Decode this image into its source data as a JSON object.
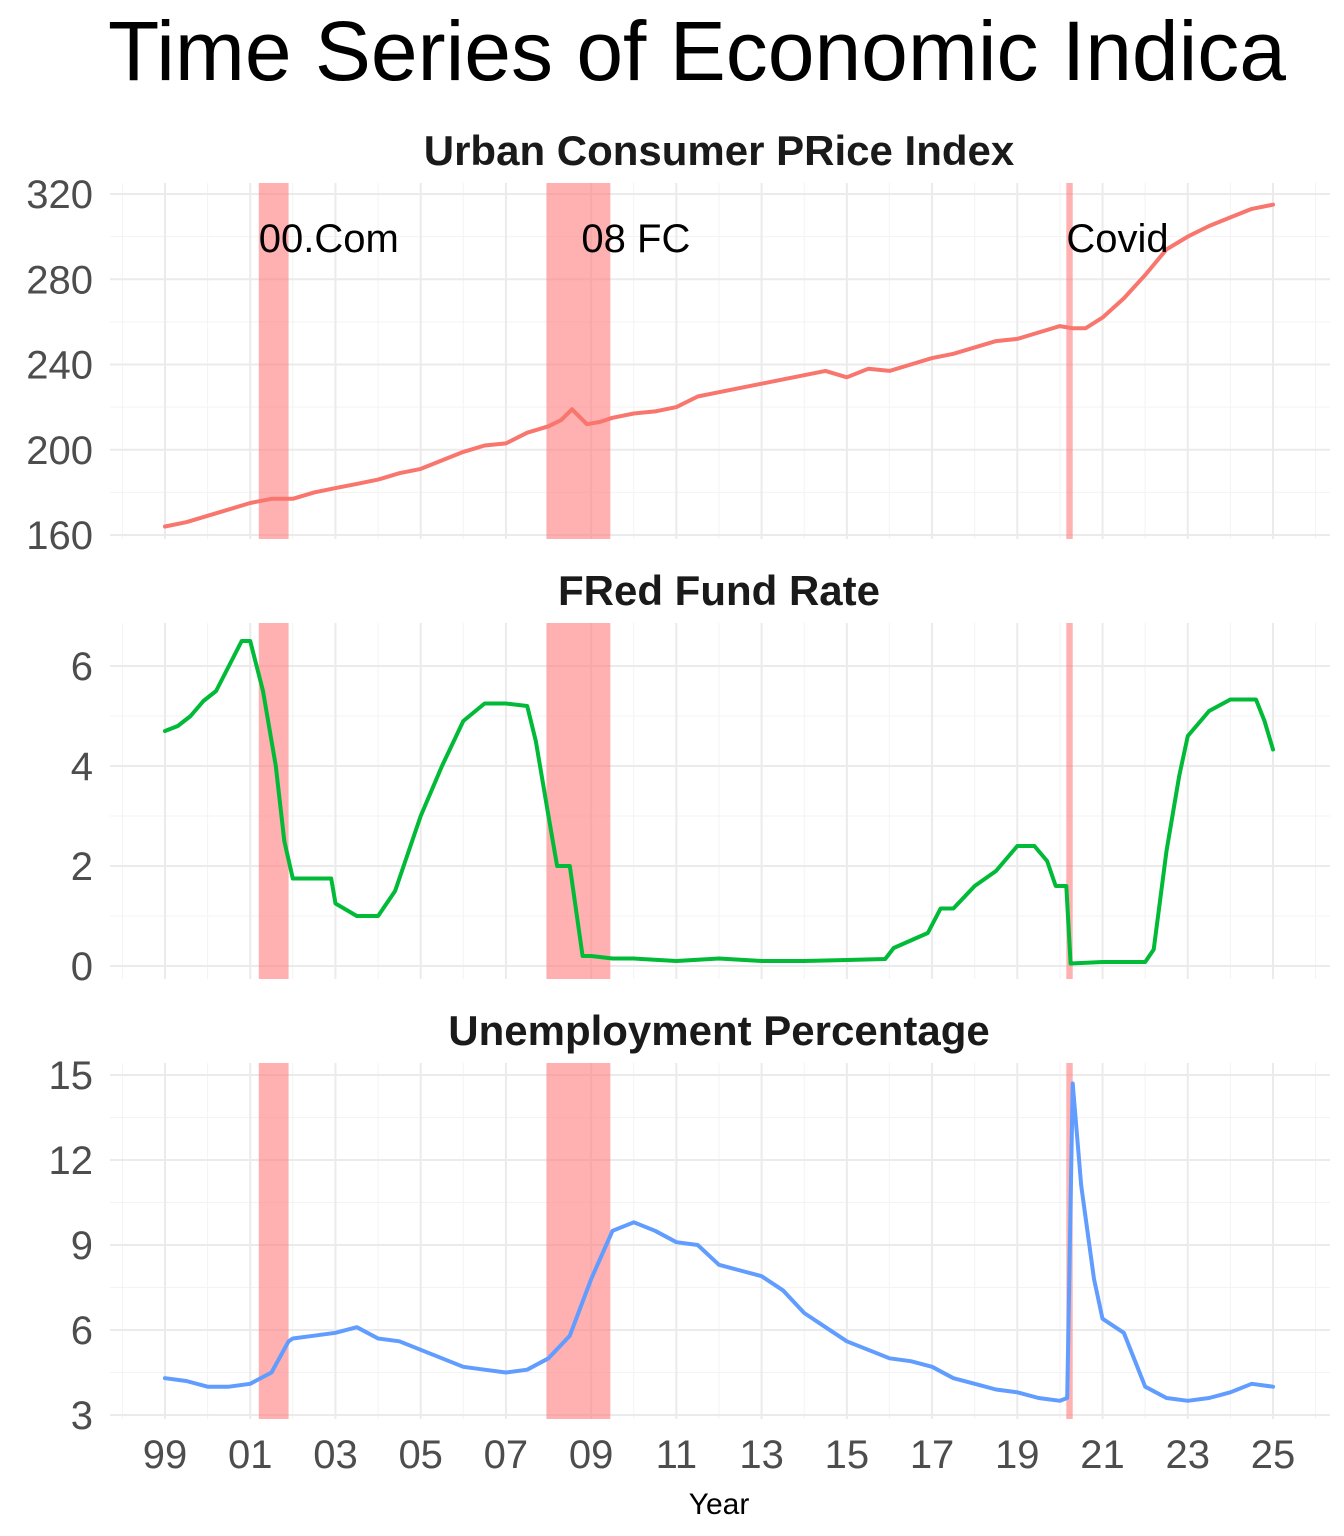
{
  "title": "Time Series of Economic Indica",
  "chart_data": [
    {
      "type": "line",
      "title": "Urban Consumer PRice Index",
      "xlabel": "",
      "ylabel": "",
      "xlim": [
        1999.0,
        2025.1
      ],
      "ylim": [
        160,
        320
      ],
      "y_ticks": [
        160,
        200,
        240,
        280,
        320
      ],
      "x_ticks": [
        1999,
        2001,
        2003,
        2005,
        2007,
        2009,
        2011,
        2013,
        2015,
        2017,
        2019,
        2021,
        2023,
        2025
      ],
      "grid": true,
      "color": "#F8766D",
      "x": [
        1999.0,
        1999.5,
        2000.0,
        2000.5,
        2001.0,
        2001.5,
        2002.0,
        2002.5,
        2003.0,
        2003.5,
        2004.0,
        2004.5,
        2005.0,
        2005.5,
        2006.0,
        2006.5,
        2007.0,
        2007.5,
        2008.0,
        2008.3,
        2008.55,
        2008.9,
        2009.2,
        2009.5,
        2010.0,
        2010.5,
        2011.0,
        2011.5,
        2012.0,
        2012.5,
        2013.0,
        2013.5,
        2014.0,
        2014.5,
        2015.0,
        2015.5,
        2016.0,
        2016.5,
        2017.0,
        2017.5,
        2018.0,
        2018.5,
        2019.0,
        2019.5,
        2020.0,
        2020.3,
        2020.6,
        2021.0,
        2021.5,
        2022.0,
        2022.5,
        2023.0,
        2023.5,
        2024.0,
        2024.5,
        2025.0
      ],
      "values": [
        164,
        166,
        169,
        172,
        175,
        177,
        177,
        180,
        182,
        184,
        186,
        189,
        191,
        195,
        199,
        202,
        203,
        208,
        211,
        214,
        219,
        212,
        213,
        215,
        217,
        218,
        220,
        225,
        227,
        229,
        231,
        233,
        235,
        237,
        234,
        238,
        237,
        240,
        243,
        245,
        248,
        251,
        252,
        255,
        258,
        257,
        257,
        262,
        271,
        282,
        294,
        300,
        305,
        309,
        313,
        315
      ]
    },
    {
      "type": "line",
      "title": "FRed  Fund Rate",
      "xlabel": "",
      "ylabel": "",
      "xlim": [
        1999.0,
        2025.1
      ],
      "ylim": [
        0,
        6.5
      ],
      "y_ticks": [
        0,
        2,
        4,
        6
      ],
      "x_ticks": [
        1999,
        2001,
        2003,
        2005,
        2007,
        2009,
        2011,
        2013,
        2015,
        2017,
        2019,
        2021,
        2023,
        2025
      ],
      "grid": true,
      "color": "#00BA38",
      "x": [
        1999.0,
        1999.3,
        1999.6,
        1999.9,
        2000.2,
        2000.5,
        2000.8,
        2001.0,
        2001.3,
        2001.6,
        2001.8,
        2002.0,
        2002.5,
        2002.9,
        2003.0,
        2003.5,
        2003.7,
        2004.0,
        2004.4,
        2004.7,
        2005.0,
        2005.5,
        2006.0,
        2006.5,
        2007.0,
        2007.5,
        2007.7,
        2008.0,
        2008.2,
        2008.5,
        2008.8,
        2009.0,
        2009.5,
        2010.0,
        2011.0,
        2012.0,
        2013.0,
        2014.0,
        2015.0,
        2015.9,
        2016.1,
        2016.9,
        2017.2,
        2017.5,
        2018.0,
        2018.5,
        2019.0,
        2019.4,
        2019.7,
        2019.9,
        2020.15,
        2020.25,
        2021.0,
        2021.5,
        2022.0,
        2022.2,
        2022.5,
        2022.8,
        2023.0,
        2023.5,
        2024.0,
        2024.6,
        2024.8,
        2025.0
      ],
      "values": [
        4.7,
        4.8,
        5.0,
        5.3,
        5.5,
        6.0,
        6.5,
        6.5,
        5.5,
        4.0,
        2.5,
        1.75,
        1.75,
        1.75,
        1.25,
        1.0,
        1.0,
        1.0,
        1.5,
        2.25,
        3.0,
        4.0,
        4.9,
        5.25,
        5.25,
        5.2,
        4.5,
        3.0,
        2.0,
        2.0,
        0.2,
        0.2,
        0.15,
        0.15,
        0.1,
        0.15,
        0.1,
        0.1,
        0.12,
        0.14,
        0.36,
        0.66,
        1.15,
        1.15,
        1.6,
        1.9,
        2.4,
        2.4,
        2.1,
        1.6,
        1.6,
        0.05,
        0.08,
        0.08,
        0.08,
        0.33,
        2.3,
        3.8,
        4.6,
        5.1,
        5.33,
        5.33,
        4.9,
        4.33
      ]
    },
    {
      "type": "line",
      "title": "Unemployment Percentage",
      "xlabel": "Year",
      "ylabel": "",
      "xlim": [
        1999.0,
        2025.1
      ],
      "ylim": [
        3,
        15
      ],
      "y_ticks": [
        3,
        6,
        9,
        12,
        15
      ],
      "x_ticks": [
        1999,
        2001,
        2003,
        2005,
        2007,
        2009,
        2011,
        2013,
        2015,
        2017,
        2019,
        2021,
        2023,
        2025
      ],
      "x_tick_labels": [
        "99",
        "01",
        "03",
        "05",
        "07",
        "09",
        "11",
        "13",
        "15",
        "17",
        "19",
        "21",
        "23",
        "25"
      ],
      "grid": true,
      "color": "#619CFF",
      "x": [
        1999.0,
        1999.5,
        2000.0,
        2000.5,
        2001.0,
        2001.5,
        2001.9,
        2002.0,
        2002.5,
        2003.0,
        2003.5,
        2004.0,
        2004.5,
        2005.0,
        2005.5,
        2006.0,
        2006.5,
        2007.0,
        2007.5,
        2008.0,
        2008.5,
        2009.0,
        2009.5,
        2010.0,
        2010.5,
        2011.0,
        2011.5,
        2012.0,
        2012.5,
        2013.0,
        2013.5,
        2014.0,
        2014.5,
        2015.0,
        2015.5,
        2016.0,
        2016.5,
        2017.0,
        2017.5,
        2018.0,
        2018.5,
        2019.0,
        2019.5,
        2020.0,
        2020.17,
        2020.3,
        2020.5,
        2020.8,
        2021.0,
        2021.5,
        2022.0,
        2022.5,
        2023.0,
        2023.5,
        2024.0,
        2024.5,
        2025.0
      ],
      "values": [
        4.3,
        4.2,
        4.0,
        4.0,
        4.1,
        4.5,
        5.6,
        5.7,
        5.8,
        5.9,
        6.1,
        5.7,
        5.6,
        5.3,
        5.0,
        4.7,
        4.6,
        4.5,
        4.6,
        5.0,
        5.8,
        7.8,
        9.5,
        9.8,
        9.5,
        9.1,
        9.0,
        8.3,
        8.1,
        7.9,
        7.4,
        6.6,
        6.1,
        5.6,
        5.3,
        5.0,
        4.9,
        4.7,
        4.3,
        4.1,
        3.9,
        3.8,
        3.6,
        3.5,
        3.6,
        14.7,
        11.1,
        7.8,
        6.4,
        5.9,
        4.0,
        3.6,
        3.5,
        3.6,
        3.8,
        4.1,
        4.0
      ]
    }
  ],
  "recessions": [
    {
      "start": 2001.2,
      "end": 2001.9,
      "label": "00.Com"
    },
    {
      "start": 2007.95,
      "end": 2009.45,
      "label": "08 FC"
    },
    {
      "start": 2020.15,
      "end": 2020.3,
      "label": "Covid"
    }
  ],
  "recession_color": "#FF7F7F"
}
